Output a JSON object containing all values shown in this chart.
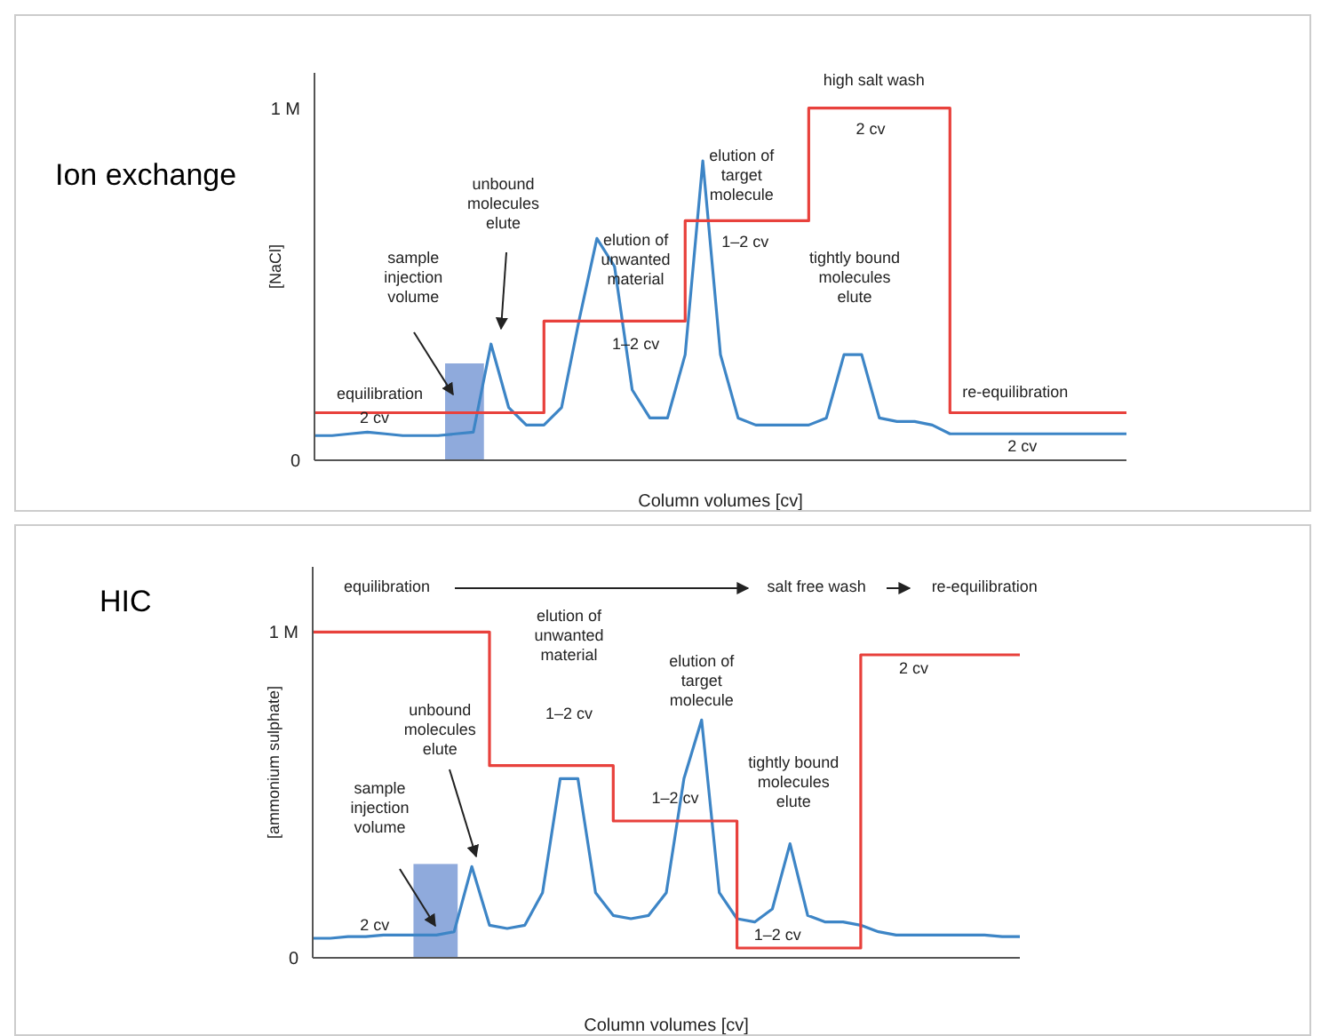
{
  "chart_data": [
    {
      "type": "line",
      "title": "Ion exchange",
      "xlabel": "Column volumes [cv]",
      "ylabel": "[NaCl]",
      "ylim": [
        0,
        1.1
      ],
      "yticks": [
        0,
        {
          "value": 1,
          "label": "1 M"
        }
      ],
      "tick_labels": "y",
      "categories": [
        null,
        null,
        null,
        null,
        null,
        null,
        null,
        null,
        null,
        null,
        null,
        null,
        null,
        null,
        null,
        null,
        null,
        null,
        null,
        null,
        null,
        null,
        null,
        null,
        null,
        null,
        null,
        null,
        null,
        null,
        null,
        null,
        null,
        null,
        null,
        null,
        null,
        null,
        null,
        null,
        null,
        null,
        null,
        null,
        null,
        null,
        null
      ],
      "series": [
        {
          "color": "#3d85c6",
          "values": [
            0.07,
            0.07,
            0.075,
            0.08,
            0.075,
            0.07,
            0.07,
            0.07,
            0.075,
            0.08,
            0.33,
            0.15,
            0.1,
            0.1,
            0.15,
            0.4,
            0.63,
            0.55,
            0.2,
            0.12,
            0.12,
            0.3,
            0.85,
            0.3,
            0.12,
            0.1,
            0.1,
            0.1,
            0.1,
            0.12,
            0.3,
            0.3,
            0.12,
            0.11,
            0.11,
            0.1,
            0.075,
            0.075,
            0.075,
            0.075,
            0.075,
            0.075,
            0.075,
            0.075,
            0.075,
            0.075,
            0.075
          ]
        },
        {
          "type": "step",
          "color": "#e8413c",
          "values": [
            0.135,
            0.135,
            0.135,
            0.135,
            0.135,
            0.135,
            0.135,
            0.135,
            0.135,
            0.135,
            0.135,
            0.135,
            0.135,
            0.395,
            0.395,
            0.395,
            0.395,
            0.395,
            0.395,
            0.395,
            0.395,
            0.68,
            0.68,
            0.68,
            0.68,
            0.68,
            0.68,
            0.68,
            1.0,
            1.0,
            1.0,
            1.0,
            1.0,
            1.0,
            1.0,
            1.0,
            0.135,
            0.135,
            0.135,
            0.135,
            0.135,
            0.135,
            0.135,
            0.135,
            0.135,
            0.135,
            0.135
          ]
        }
      ],
      "annotations": [
        "equilibration",
        "2 cv",
        "sample injection volume",
        "unbound molecules elute",
        "elution of unwanted material",
        "1–2 cv",
        "elution of target molecule",
        "1–2 cv",
        "high salt wash",
        "2 cv",
        "tightly bound molecules elute",
        "re-equilibration",
        "2 cv"
      ]
    },
    {
      "type": "line",
      "title": "HIC",
      "xlabel": "Column volumes [cv]",
      "ylabel": "[ammonium sulphate]",
      "ylim": [
        0,
        1.2
      ],
      "yticks": [
        0,
        {
          "value": 1,
          "label": "1 M"
        }
      ],
      "tick_labels": "y",
      "categories": [
        null,
        null,
        null,
        null,
        null,
        null,
        null,
        null,
        null,
        null,
        null,
        null,
        null,
        null,
        null,
        null,
        null,
        null,
        null,
        null,
        null,
        null,
        null,
        null,
        null,
        null,
        null,
        null,
        null,
        null,
        null,
        null,
        null,
        null,
        null,
        null,
        null,
        null,
        null,
        null,
        null
      ],
      "series": [
        {
          "color": "#3d85c6",
          "values": [
            0.06,
            0.06,
            0.065,
            0.065,
            0.07,
            0.07,
            0.07,
            0.07,
            0.08,
            0.28,
            0.1,
            0.09,
            0.1,
            0.2,
            0.55,
            0.55,
            0.2,
            0.13,
            0.12,
            0.13,
            0.2,
            0.55,
            0.73,
            0.2,
            0.12,
            0.11,
            0.15,
            0.35,
            0.13,
            0.11,
            0.11,
            0.1,
            0.08,
            0.07,
            0.07,
            0.07,
            0.07,
            0.07,
            0.07,
            0.065,
            0.065
          ]
        },
        {
          "type": "step",
          "color": "#e8413c",
          "values": [
            1.0,
            1.0,
            1.0,
            1.0,
            1.0,
            1.0,
            1.0,
            1.0,
            1.0,
            1.0,
            0.59,
            0.59,
            0.59,
            0.59,
            0.59,
            0.59,
            0.59,
            0.42,
            0.42,
            0.42,
            0.42,
            0.42,
            0.42,
            0.42,
            0.03,
            0.03,
            0.03,
            0.03,
            0.03,
            0.03,
            0.03,
            0.93,
            0.93,
            0.93,
            0.93,
            0.93,
            0.93,
            0.93,
            0.93,
            0.93,
            0.93
          ]
        }
      ],
      "annotations": [
        "equilibration",
        "salt free wash",
        "re-equilibration",
        "2 cv",
        "sample injection volume",
        "unbound molecules elute",
        "elution of unwanted material",
        "1–2 cv",
        "elution of target molecule",
        "1–2 cv",
        "tightly bound molecules elute",
        "1–2 cv",
        "2 cv"
      ]
    }
  ]
}
